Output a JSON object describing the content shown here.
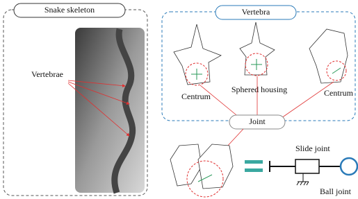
{
  "skeleton": {
    "title": "Snake skeleton",
    "label": "Vertebrae"
  },
  "vertebra": {
    "title": "Vertebra",
    "labels": [
      "Centrum",
      "Sphered housing",
      "Centrum"
    ]
  },
  "joint": {
    "title": "Joint",
    "labels": [
      "Slide joint",
      "Ball joint"
    ]
  }
}
